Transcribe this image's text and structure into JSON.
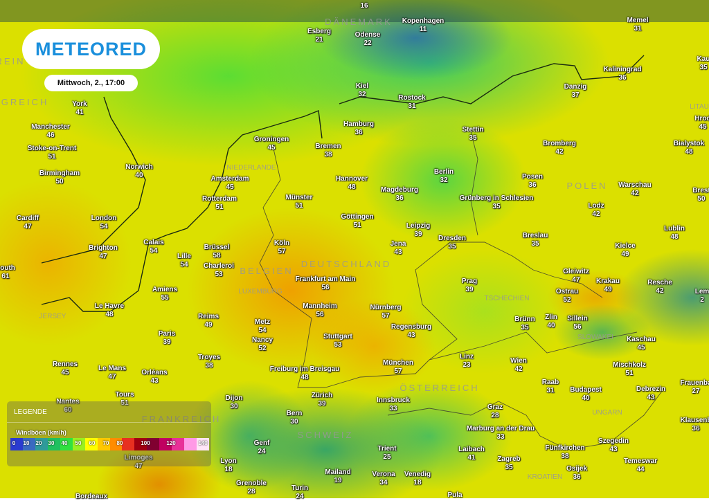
{
  "brand": {
    "logo_text": "METEORED",
    "logo_color": "#1a8fdc"
  },
  "timestamp": "Mittwoch, 2., 17:00",
  "legend": {
    "title": "LEGENDE",
    "subtitle": "Windböen (km/h)",
    "ticks": [
      "0",
      "10",
      "20",
      "30",
      "40",
      "50",
      "60",
      "70",
      "80",
      "100",
      "120",
      "140"
    ],
    "colors": [
      "#2b3bd0",
      "#3a6ac0",
      "#2f9a9a",
      "#20c060",
      "#30e040",
      "#9af020",
      "#ffff00",
      "#ffc800",
      "#ff8c00",
      "#e83020",
      "#a00010",
      "#800030",
      "#c00060",
      "#e83098",
      "#ff9ae6",
      "#ffe6f8"
    ]
  },
  "countries": [
    "DÄNEMARK",
    "NIEDERLANDE",
    "POLEN",
    "DEUTSCHLAND",
    "BELGIEN",
    "LUXEMBURG",
    "TSCHECHIEN",
    "JERSEY",
    "SLOWAKEI",
    "UNGARN",
    "ÖSTERREICH",
    "SCHWEIZ",
    "FRANKREICH",
    "KROATIEN",
    "ONIGREICH",
    "REIN",
    "LITAU"
  ],
  "cities": [
    {
      "name": "",
      "value": "16"
    },
    {
      "name": "Esberg",
      "value": "21"
    },
    {
      "name": "Odense",
      "value": "22"
    },
    {
      "name": "Kopenhagen",
      "value": "11"
    },
    {
      "name": "Memel",
      "value": "31"
    },
    {
      "name": "Kaliningrad",
      "value": "36"
    },
    {
      "name": "Danzig",
      "value": "37"
    },
    {
      "name": "Kiel",
      "value": "32"
    },
    {
      "name": "Rostock",
      "value": "31"
    },
    {
      "name": "Hamburg",
      "value": "36"
    },
    {
      "name": "Stettin",
      "value": "35"
    },
    {
      "name": "Bremen",
      "value": "38"
    },
    {
      "name": "Groningen",
      "value": "45"
    },
    {
      "name": "Bromberg",
      "value": "42"
    },
    {
      "name": "Bialystok",
      "value": "48"
    },
    {
      "name": "York",
      "value": "41"
    },
    {
      "name": "Manchester",
      "value": "46"
    },
    {
      "name": "Stoke-on-Trent",
      "value": "51"
    },
    {
      "name": "Birmingham",
      "value": "50"
    },
    {
      "name": "Norwich",
      "value": "40"
    },
    {
      "name": "Amsterdam",
      "value": "45"
    },
    {
      "name": "Hannover",
      "value": "48"
    },
    {
      "name": "Berlin",
      "value": "32"
    },
    {
      "name": "Magdeburg",
      "value": "36"
    },
    {
      "name": "Posen",
      "value": "36"
    },
    {
      "name": "Warschau",
      "value": "42"
    },
    {
      "name": "Rotterdam",
      "value": "51"
    },
    {
      "name": "Münster",
      "value": "51"
    },
    {
      "name": "Grünberg in Schlesien",
      "value": "35"
    },
    {
      "name": "Lodz",
      "value": "42"
    },
    {
      "name": "Cardiff",
      "value": "47"
    },
    {
      "name": "London",
      "value": "54"
    },
    {
      "name": "Göttingen",
      "value": "51"
    },
    {
      "name": "Leipzig",
      "value": "39"
    },
    {
      "name": "Lublin",
      "value": "48"
    },
    {
      "name": "Dresden",
      "value": "35"
    },
    {
      "name": "Breslau",
      "value": "35"
    },
    {
      "name": "Brighton",
      "value": "47"
    },
    {
      "name": "Calais",
      "value": "54"
    },
    {
      "name": "Brüssel",
      "value": "58"
    },
    {
      "name": "Lille",
      "value": "54"
    },
    {
      "name": "Köln",
      "value": "57"
    },
    {
      "name": "Jena",
      "value": "43"
    },
    {
      "name": "Kielce",
      "value": "49"
    },
    {
      "name": "Charleroi",
      "value": "53"
    },
    {
      "name": "nouth",
      "value": "61"
    },
    {
      "name": "Gleiwitz",
      "value": "47"
    },
    {
      "name": "Amiens",
      "value": "55"
    },
    {
      "name": "Frankfurt am Main",
      "value": "56"
    },
    {
      "name": "Prag",
      "value": "39"
    },
    {
      "name": "Krakau",
      "value": "49"
    },
    {
      "name": "Resche",
      "value": "42"
    },
    {
      "name": "Ostrau",
      "value": "52"
    },
    {
      "name": "Le Havre",
      "value": "48"
    },
    {
      "name": "Mannheim",
      "value": "56"
    },
    {
      "name": "Nürnberg",
      "value": "57"
    },
    {
      "name": "Brünn",
      "value": "35"
    },
    {
      "name": "Zlin",
      "value": "40"
    },
    {
      "name": "Sillein",
      "value": "56"
    },
    {
      "name": "Reims",
      "value": "49"
    },
    {
      "name": "Metz",
      "value": "54"
    },
    {
      "name": "Regensburg",
      "value": "43"
    },
    {
      "name": "Kaschau",
      "value": "45"
    },
    {
      "name": "Paris",
      "value": "39"
    },
    {
      "name": "Nancy",
      "value": "52"
    },
    {
      "name": "Stuttgart",
      "value": "53"
    },
    {
      "name": "Troyes",
      "value": "38"
    },
    {
      "name": "Linz",
      "value": "23"
    },
    {
      "name": "Wien",
      "value": "42"
    },
    {
      "name": "Mischkolz",
      "value": "51"
    },
    {
      "name": "Rennes",
      "value": "45"
    },
    {
      "name": "Le Mans",
      "value": "47"
    },
    {
      "name": "München",
      "value": "57"
    },
    {
      "name": "Freiburg im Breisgau",
      "value": "48"
    },
    {
      "name": "Orléans",
      "value": "43"
    },
    {
      "name": "Raab",
      "value": "31"
    },
    {
      "name": "Budapest",
      "value": "40"
    },
    {
      "name": "Debrezin",
      "value": "43"
    },
    {
      "name": "Frauenba",
      "value": "27"
    },
    {
      "name": "Tours",
      "value": "51"
    },
    {
      "name": "Nantes",
      "value": "60"
    },
    {
      "name": "Dijon",
      "value": "30"
    },
    {
      "name": "Zürich",
      "value": "39"
    },
    {
      "name": "Innsbruck",
      "value": "33"
    },
    {
      "name": "Bern",
      "value": "30"
    },
    {
      "name": "Graz",
      "value": "28"
    },
    {
      "name": "Klausenb",
      "value": "36"
    },
    {
      "name": "Marburg an der Drau",
      "value": "33"
    },
    {
      "name": "Genf",
      "value": "24"
    },
    {
      "name": "Szegedin",
      "value": "43"
    },
    {
      "name": "Fünfkirchen",
      "value": "38"
    },
    {
      "name": "Trient",
      "value": "25"
    },
    {
      "name": "Laibach",
      "value": "41"
    },
    {
      "name": "Lyon",
      "value": "18"
    },
    {
      "name": "Limoges",
      "value": "47"
    },
    {
      "name": "Zagreb",
      "value": "35"
    },
    {
      "name": "Temeswar",
      "value": "44"
    },
    {
      "name": "Osijek",
      "value": "36"
    },
    {
      "name": "Mailand",
      "value": "19"
    },
    {
      "name": "Verona",
      "value": "34"
    },
    {
      "name": "Venedig",
      "value": "18"
    },
    {
      "name": "Grenoble",
      "value": "28"
    },
    {
      "name": "Turin",
      "value": "24"
    },
    {
      "name": "Kau",
      "value": "35"
    },
    {
      "name": "Hrod",
      "value": "45"
    },
    {
      "name": "Brest",
      "value": "50"
    },
    {
      "name": "Lem",
      "value": "2"
    },
    {
      "name": "Pula",
      "value": ""
    },
    {
      "name": "Bordeaux",
      "value": ""
    }
  ]
}
